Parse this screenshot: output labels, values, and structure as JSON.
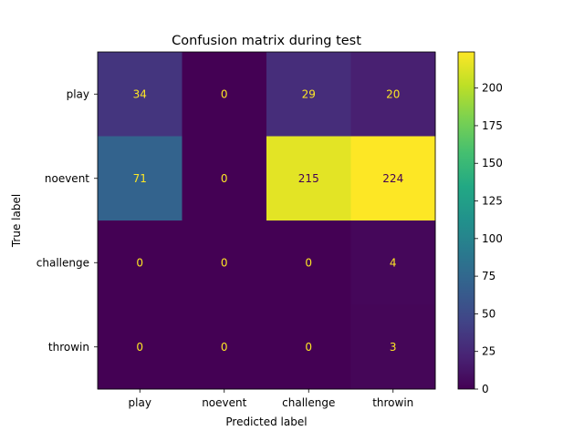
{
  "chart_data": {
    "type": "heatmap",
    "title": "Confusion matrix during test",
    "xlabel": "Predicted label",
    "ylabel": "True label",
    "x_categories": [
      "play",
      "noevent",
      "challenge",
      "throwin"
    ],
    "y_categories": [
      "play",
      "noevent",
      "challenge",
      "throwin"
    ],
    "values": [
      [
        34,
        0,
        29,
        20
      ],
      [
        71,
        0,
        215,
        224
      ],
      [
        0,
        0,
        0,
        4
      ],
      [
        0,
        0,
        0,
        3
      ]
    ],
    "colormap": "viridis",
    "colorbar": {
      "range": [
        0,
        224
      ],
      "ticks": [
        0,
        25,
        50,
        75,
        100,
        125,
        150,
        175,
        200
      ]
    },
    "text_colors": {
      "on_dark": "#fde725",
      "on_light": "#440154"
    },
    "grid": false
  }
}
